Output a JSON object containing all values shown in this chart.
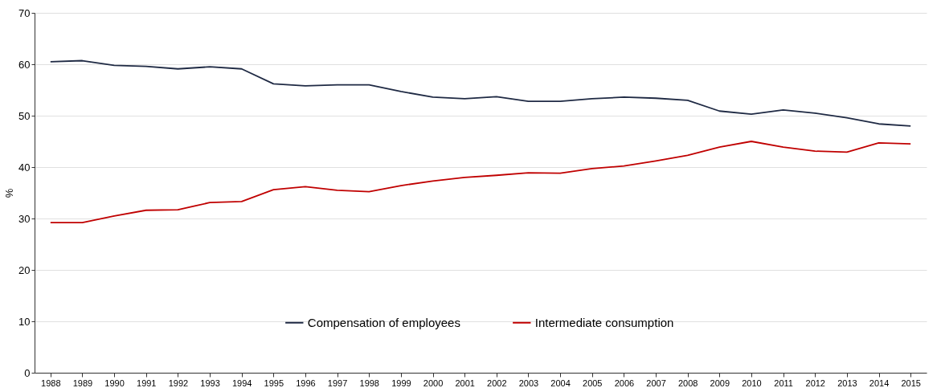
{
  "chart_data": {
    "type": "line",
    "ylabel": "%",
    "categories": [
      "1988",
      "1989",
      "1990",
      "1991",
      "1992",
      "1993",
      "1994",
      "1995",
      "1996",
      "1997",
      "1998",
      "1999",
      "2000",
      "2001",
      "2002",
      "2003",
      "2004",
      "2005",
      "2006",
      "2007",
      "2008",
      "2009",
      "2010",
      "2011",
      "2012",
      "2013",
      "2014",
      "2015"
    ],
    "series": [
      {
        "name": "Compensation of employees",
        "color": "#1f2a44",
        "values": [
          60.5,
          60.7,
          59.8,
          59.6,
          59.1,
          59.5,
          59.1,
          56.2,
          55.8,
          56.0,
          56.0,
          54.7,
          53.6,
          53.3,
          53.7,
          52.8,
          52.8,
          53.3,
          53.6,
          53.4,
          53.0,
          50.9,
          50.3,
          51.1,
          50.5,
          49.6,
          48.4,
          48.0
        ]
      },
      {
        "name": "Intermediate consumption",
        "color": "#c00000",
        "values": [
          29.2,
          29.2,
          30.5,
          31.6,
          31.7,
          33.1,
          33.3,
          35.6,
          36.2,
          35.5,
          35.2,
          36.4,
          37.3,
          38.0,
          38.4,
          38.9,
          38.8,
          39.7,
          40.2,
          41.2,
          42.3,
          43.9,
          45.0,
          43.9,
          43.1,
          42.9,
          44.7,
          44.5
        ]
      }
    ],
    "ylim": [
      0,
      70
    ],
    "yticks": [
      0,
      10,
      20,
      30,
      40,
      50,
      60,
      70
    ],
    "grid": "y",
    "legend": "bottom",
    "line_style": "solid"
  }
}
